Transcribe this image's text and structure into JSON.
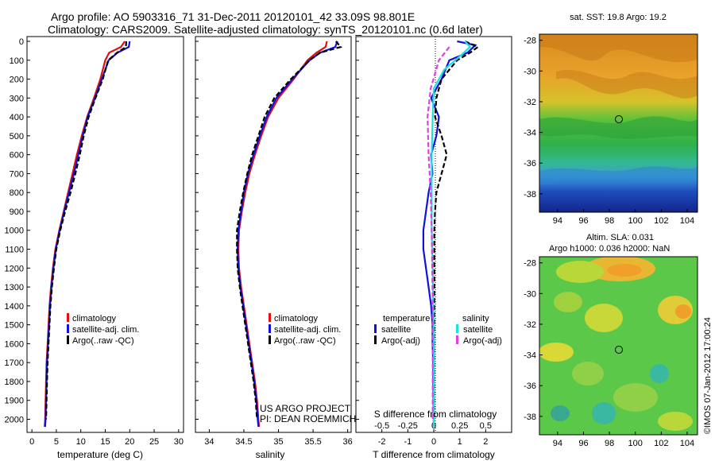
{
  "header": {
    "title_line1": "Argo profile: AO 5903316_71 31-Dec-2011 20120101_42 33.09S 98.801E",
    "title_line2": "Climatology: CARS2009. Satellite-adjusted climatology: synTS_20120101.nc (0.6d later)"
  },
  "annotations": {
    "project": "US ARGO PROJECT",
    "pi": "PI: DEAN ROEMMICH",
    "credit": "©IMOS 07-Jan-2012 17:00:24"
  },
  "maps": {
    "sst": {
      "title": "sat. SST: 19.8 Argo: 19.2",
      "lon_ticks": [
        "94",
        "96",
        "98",
        "100",
        "102",
        "104"
      ],
      "lat_ticks": [
        "-28",
        "-30",
        "-32",
        "-34",
        "-36",
        "-38"
      ]
    },
    "sla": {
      "title_line1": "Altim. SLA: 0.031",
      "title_line2": "Argo h1000: 0.036 h2000: NaN",
      "lon_ticks": [
        "94",
        "96",
        "98",
        "100",
        "102",
        "104"
      ],
      "lat_ticks": [
        "-28",
        "-30",
        "-32",
        "-34",
        "-36",
        "-38"
      ]
    }
  },
  "colors": {
    "climatology": "#e01010",
    "satellite": "#1010e0",
    "argo": "#000000",
    "sal_satellite": "#22dede",
    "sal_argo": "#e040e0"
  },
  "chart_data": [
    {
      "type": "line",
      "xlabel": "temperature (deg C)",
      "xlim": [
        -1,
        31
      ],
      "xticks": [
        "0",
        "5",
        "10",
        "15",
        "20",
        "25",
        "30"
      ],
      "ylabel": "",
      "ylim": [
        0,
        2080
      ],
      "yticks": [
        "0",
        "100",
        "200",
        "300",
        "400",
        "500",
        "600",
        "700",
        "800",
        "900",
        "1000",
        "1100",
        "1200",
        "1300",
        "1400",
        "1500",
        "1600",
        "1700",
        "1800",
        "1900",
        "2000"
      ],
      "legend": [
        "climatology",
        "satellite-adj. clim.",
        "Argo(..raw -QC)"
      ],
      "series": [
        {
          "name": "climatology",
          "color": "#e01010",
          "dash": false,
          "x": [
            19,
            18.2,
            15.8,
            15,
            14,
            12.7,
            11.3,
            10.2,
            9.2,
            8.3,
            7.4,
            6.5,
            5.6,
            4.8,
            4.3,
            3.9,
            3.6,
            3.4,
            3.2,
            3,
            2.9,
            2.8,
            2.7,
            2.6
          ],
          "y": [
            0,
            30,
            60,
            100,
            200,
            300,
            400,
            500,
            600,
            700,
            800,
            900,
            1000,
            1100,
            1200,
            1300,
            1400,
            1500,
            1600,
            1700,
            1800,
            1900,
            2000,
            2040
          ]
        },
        {
          "name": "satellite-adj. clim.",
          "color": "#1010e0",
          "dash": false,
          "x": [
            20,
            19.8,
            17.5,
            15.7,
            14.3,
            12.9,
            11.4,
            10.4,
            9.5,
            8.6,
            7.6,
            6.6,
            5.7,
            4.9,
            4.4,
            4,
            3.7,
            3.5,
            3.3,
            3.1,
            3,
            2.9,
            2.8,
            2.7
          ],
          "y": [
            0,
            30,
            60,
            100,
            200,
            300,
            400,
            500,
            600,
            700,
            800,
            900,
            1000,
            1100,
            1200,
            1300,
            1400,
            1500,
            1600,
            1700,
            1800,
            1900,
            2000,
            2040
          ]
        },
        {
          "name": "Argo(..raw -QC)",
          "color": "#000000",
          "dash": true,
          "x": [
            19.3,
            19.2,
            17.4,
            15.6,
            14.5,
            13,
            11.6,
            10.6,
            9.8,
            8.9,
            7.9,
            6.8,
            5.8,
            5,
            4.5,
            4.1,
            3.8,
            3.6,
            3.4,
            3.2,
            3.1,
            3,
            2.9
          ],
          "y": [
            0,
            30,
            60,
            100,
            200,
            300,
            400,
            500,
            600,
            700,
            800,
            900,
            1000,
            1100,
            1200,
            1300,
            1400,
            1500,
            1600,
            1700,
            1800,
            1900,
            2000
          ]
        }
      ]
    },
    {
      "type": "line",
      "xlabel": "salinity",
      "xlim": [
        33.8,
        36.05
      ],
      "xticks": [
        "34",
        "34.5",
        "35",
        "35.5",
        "36"
      ],
      "ylim": [
        0,
        2080
      ],
      "legend": [
        "climatology",
        "satellite-adj. clim.",
        "Argo(..raw -QC)"
      ],
      "series": [
        {
          "name": "climatology",
          "color": "#e01010",
          "dash": false,
          "x": [
            35.7,
            35.68,
            35.55,
            35.42,
            35.22,
            35.0,
            34.85,
            34.75,
            34.66,
            34.58,
            34.52,
            34.47,
            34.43,
            34.42,
            34.43,
            34.46,
            34.5,
            34.54,
            34.58,
            34.62,
            34.66,
            34.69,
            34.71,
            34.72
          ],
          "y": [
            0,
            30,
            60,
            100,
            200,
            300,
            400,
            500,
            600,
            700,
            800,
            900,
            1000,
            1100,
            1200,
            1300,
            1400,
            1500,
            1600,
            1700,
            1800,
            1900,
            2000,
            2040
          ]
        },
        {
          "name": "satellite-adj. clim.",
          "color": "#1010e0",
          "dash": false,
          "x": [
            35.85,
            35.82,
            35.6,
            35.45,
            35.2,
            34.97,
            34.83,
            34.73,
            34.64,
            34.56,
            34.5,
            34.46,
            34.42,
            34.41,
            34.42,
            34.45,
            34.49,
            34.53,
            34.57,
            34.61,
            34.65,
            34.68,
            34.7,
            34.71
          ],
          "y": [
            0,
            30,
            60,
            100,
            200,
            300,
            400,
            500,
            600,
            700,
            800,
            900,
            1000,
            1100,
            1200,
            1300,
            1400,
            1500,
            1600,
            1700,
            1800,
            1900,
            2000,
            2040
          ]
        },
        {
          "name": "Argo(..raw -QC)",
          "color": "#000000",
          "dash": true,
          "x": [
            35.83,
            35.9,
            35.6,
            35.45,
            35.18,
            34.94,
            34.8,
            34.71,
            34.62,
            34.55,
            34.49,
            34.44,
            34.4,
            34.4,
            34.41,
            34.44,
            34.48,
            34.52,
            34.56,
            34.6,
            34.64,
            34.67,
            34.69
          ],
          "y": [
            0,
            30,
            60,
            100,
            200,
            300,
            400,
            500,
            600,
            700,
            800,
            900,
            1000,
            1100,
            1200,
            1300,
            1400,
            1500,
            1600,
            1700,
            1800,
            1900,
            2000
          ]
        }
      ]
    },
    {
      "type": "line",
      "xlabel": "T difference from climatology",
      "x2label": "S difference from climatology",
      "xlim": [
        -3,
        3
      ],
      "xticks": [
        "-2",
        "-1",
        "0",
        "1",
        "2"
      ],
      "x2ticks": [
        "-0.5",
        "-0.25",
        "0",
        "0.25",
        "0.5"
      ],
      "ylim": [
        0,
        2080
      ],
      "legend_headers": [
        "temperature",
        "salinity"
      ],
      "legend": [
        "satellite",
        "Argo(-adj)",
        "satellite",
        "Argo(-adj)"
      ],
      "series": [
        {
          "name": "satellite",
          "group": "temperature",
          "color": "#1010e0",
          "dash": false,
          "x": [
            0.9,
            1.6,
            1.3,
            0.6,
            0.3,
            -0.1,
            0.2,
            0.1,
            -0.1,
            -0.05,
            -0.2,
            -0.3,
            -0.4,
            -0.4,
            -0.3,
            -0.2,
            -0.1,
            -0.05,
            -0.05,
            -0.02,
            -0.02,
            0
          ],
          "y": [
            0,
            20,
            60,
            100,
            200,
            300,
            400,
            500,
            600,
            700,
            800,
            900,
            1000,
            1100,
            1200,
            1300,
            1400,
            1500,
            1600,
            1700,
            1800,
            2040
          ]
        },
        {
          "name": "Argo(-adj)",
          "group": "temperature",
          "color": "#000000",
          "dash": true,
          "x": [
            1.2,
            1.7,
            1.4,
            0.9,
            0.3,
            0.1,
            0.05,
            0.3,
            0.5,
            0.3,
            0.1,
            0.05,
            0.02,
            0.02,
            0.02,
            0.01,
            0.01,
            0.01
          ],
          "y": [
            0,
            30,
            60,
            100,
            200,
            300,
            400,
            500,
            600,
            700,
            800,
            900,
            1000,
            1200,
            1400,
            1600,
            1800,
            2000
          ]
        },
        {
          "name": "satellite",
          "group": "salinity",
          "color": "#22dede",
          "dash": false,
          "x": [
            0.3,
            0.35,
            0.25,
            0.1,
            0.0,
            -0.01,
            -0.02,
            -0.02,
            -0.02,
            -0.01,
            0,
            0
          ],
          "y": [
            0,
            30,
            80,
            150,
            250,
            400,
            600,
            800,
            1000,
            1200,
            1600,
            2040
          ]
        },
        {
          "name": "Argo(-adj)",
          "group": "salinity",
          "color": "#e040e0",
          "dash": true,
          "x": [
            0.15,
            0.05,
            -0.03,
            -0.06,
            -0.05,
            -0.03,
            -0.02,
            -0.01,
            -0.01,
            -0.01
          ],
          "y": [
            30,
            100,
            250,
            400,
            600,
            800,
            1000,
            1400,
            1800,
            2000
          ]
        }
      ]
    }
  ]
}
